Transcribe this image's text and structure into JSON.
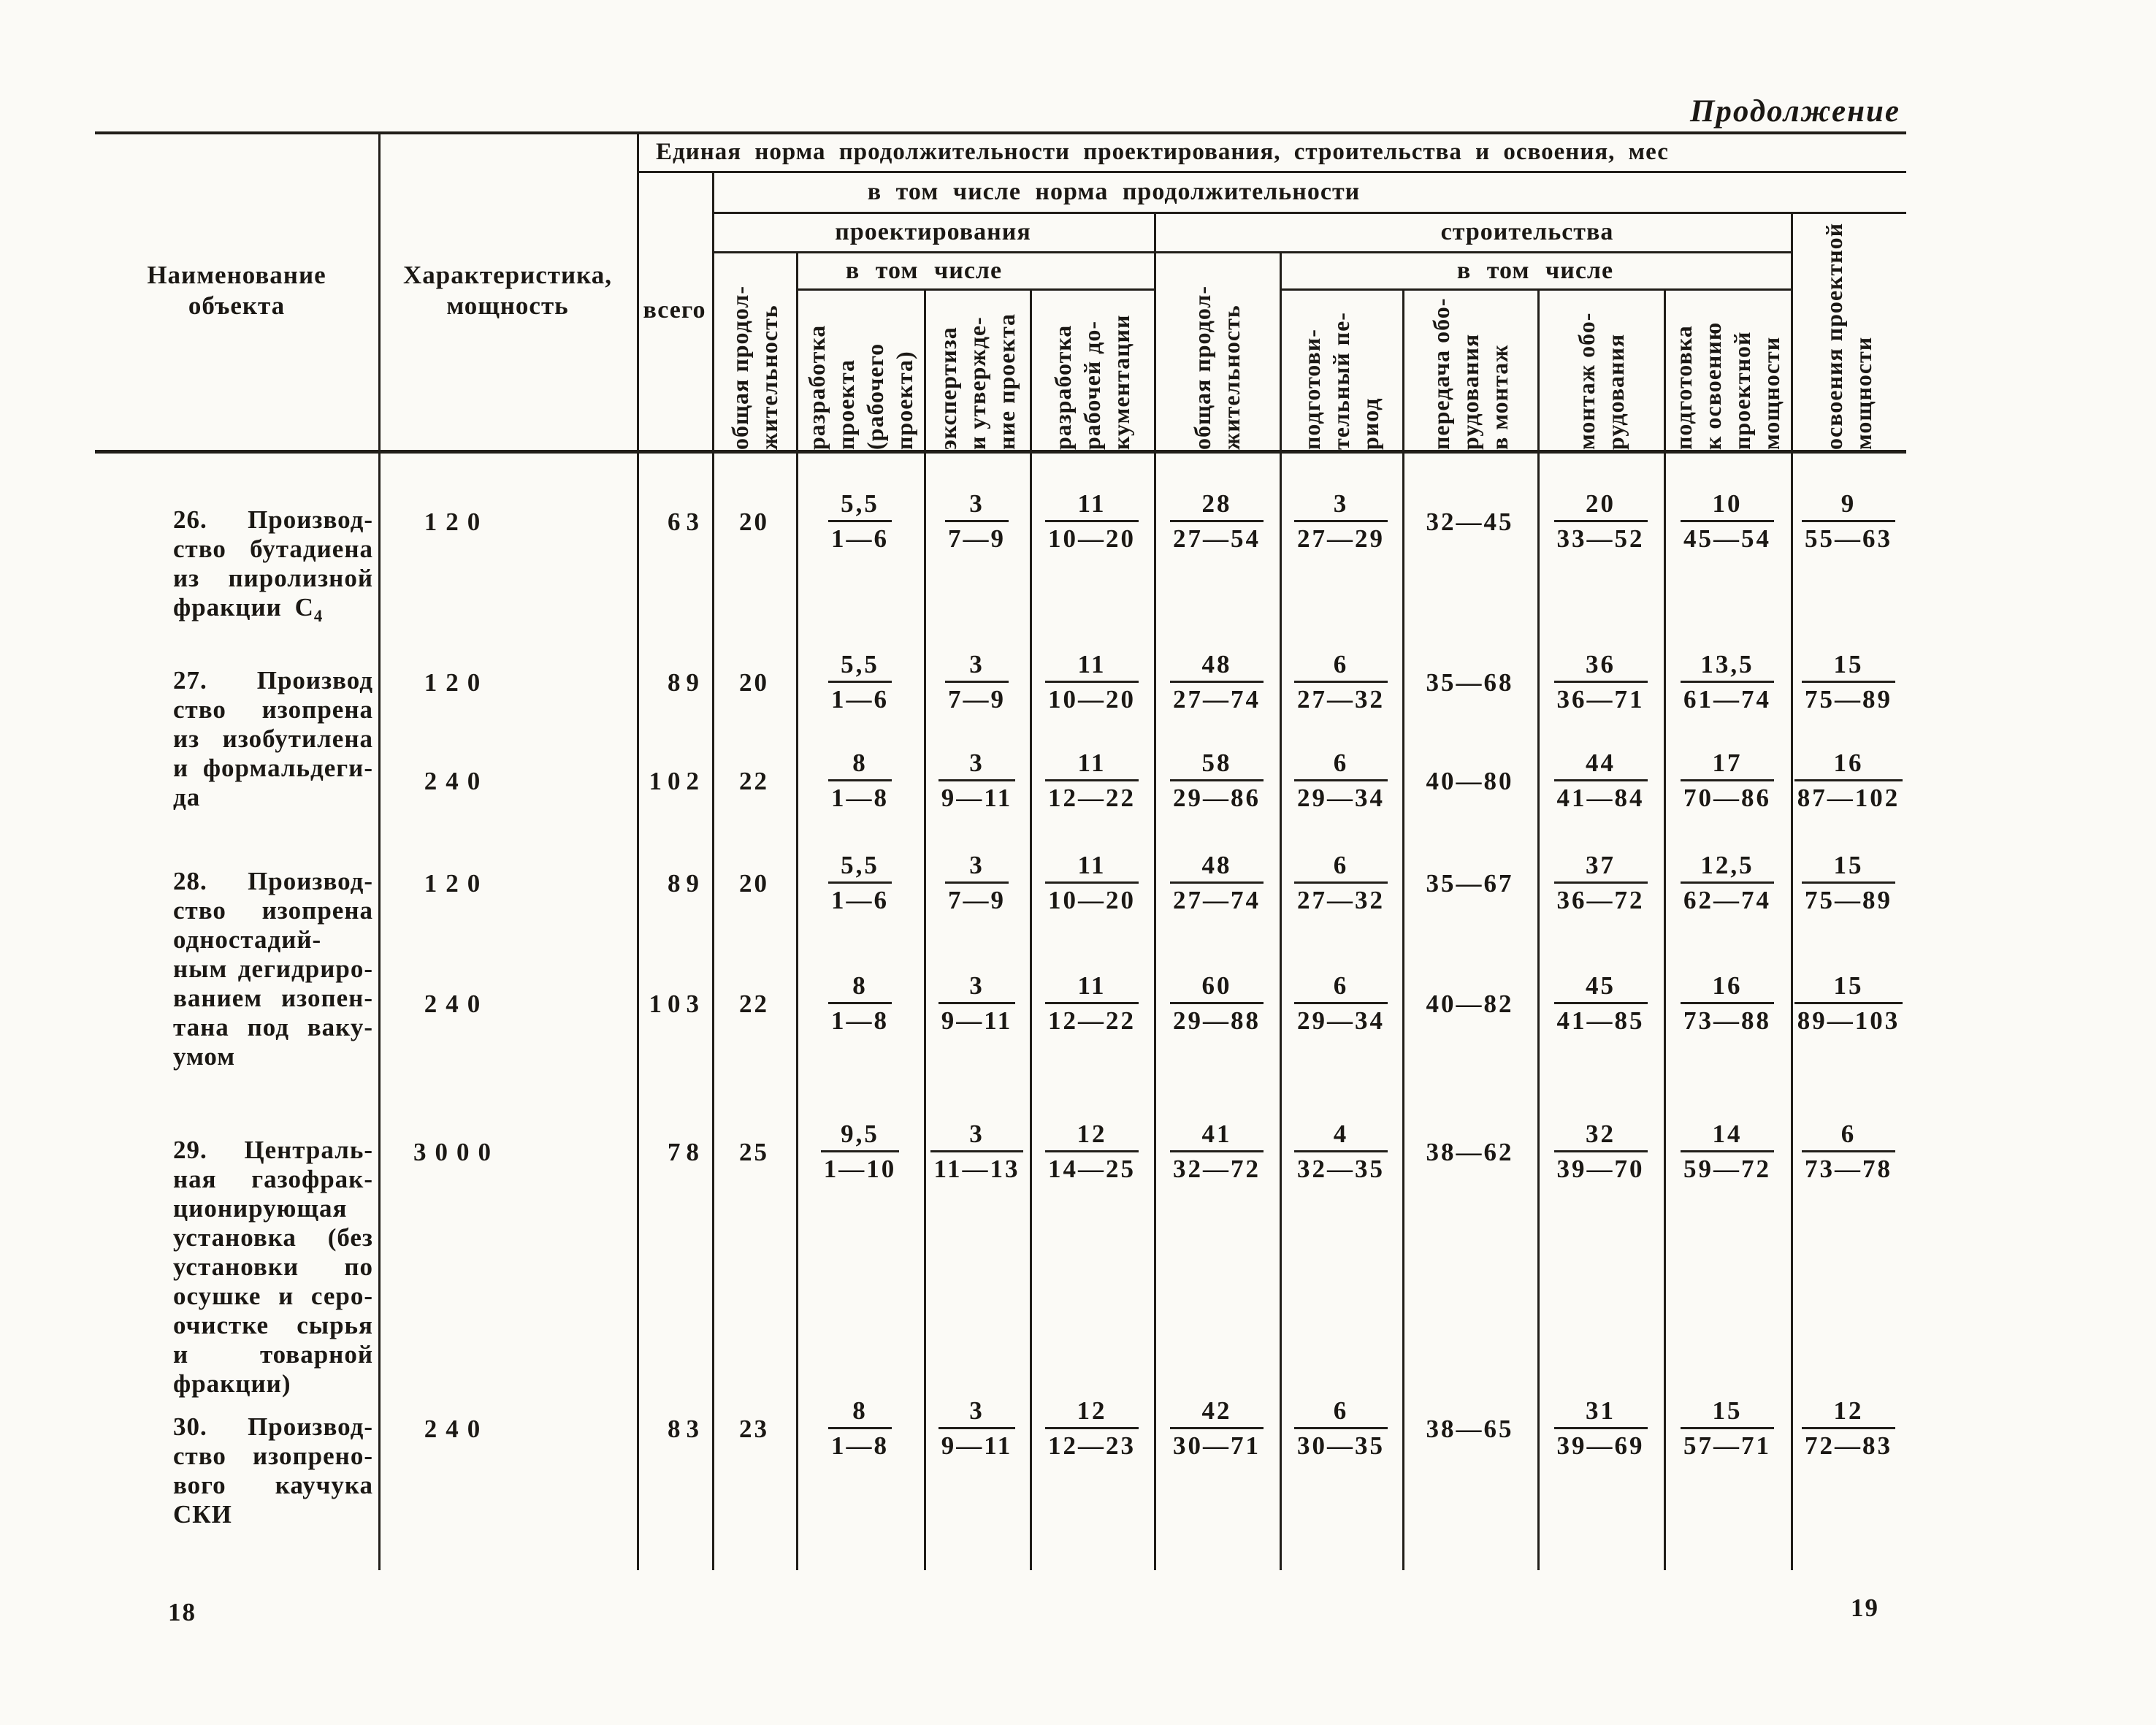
{
  "page": {
    "continuation_label": "Продолжение",
    "page_number_left": "18",
    "page_number_right": "19"
  },
  "table": {
    "header": {
      "object_name": "Наименование\nобъекта",
      "characteristic": "Характеристика,\nмощность",
      "unified_norm": "Единая норма продолжительности проектирования, строительства и освоения, мес",
      "total": "всего",
      "including_norm": "в том числе норма продолжительности",
      "design": "проектирования",
      "construction": "строительства",
      "including_design": "в том числе",
      "including_construction": "в том числе",
      "rot": {
        "design_overall": "общая продол-\nжительность",
        "project_dev": "разработка\nпроекта\n(рабочего\nпроекта)",
        "expertise": "экспертиза\nи утвержде-\nние проекта",
        "working_docs": "разработка\nрабочей до-\nкументации",
        "constr_overall": "общая продол-\nжительность",
        "prep_period": "подготови-\nтельный пе-\nриод",
        "equip_transfer": "передача обо-\nрудования\nв монтаж",
        "equip_install": "монтаж обо-\nрудования",
        "capacity_prep": "подготовка\nк освоению\nпроектной\nмощности",
        "capacity_dev": "освоения проектной\nмощности"
      }
    },
    "rows": [
      {
        "name_lines": [
          "26. Производ-",
          "ство бутадиена",
          "из пиролизной",
          "фракции С₄"
        ],
        "subrows": [
          {
            "capacity": "120",
            "total": "63",
            "design_overall": "20",
            "cells": [
              {
                "n": "5,5",
                "d": "1—6"
              },
              {
                "n": "3",
                "d": "7—9"
              },
              {
                "n": "11",
                "d": "10—20"
              },
              {
                "n": "28",
                "d": "27—54"
              },
              {
                "n": "3",
                "d": "27—29"
              },
              {
                "v": "32—45"
              },
              {
                "n": "20",
                "d": "33—52"
              },
              {
                "n": "10",
                "d": "45—54"
              },
              {
                "n": "9",
                "d": "55—63"
              }
            ]
          }
        ]
      },
      {
        "name_lines": [
          "27. Производ",
          "ство изопрена",
          "из изобутилена",
          "и формальдеги-",
          "да"
        ],
        "subrows": [
          {
            "capacity": "120",
            "total": "89",
            "design_overall": "20",
            "cells": [
              {
                "n": "5,5",
                "d": "1—6"
              },
              {
                "n": "3",
                "d": "7—9"
              },
              {
                "n": "11",
                "d": "10—20"
              },
              {
                "n": "48",
                "d": "27—74"
              },
              {
                "n": "6",
                "d": "27—32"
              },
              {
                "v": "35—68"
              },
              {
                "n": "36",
                "d": "36—71"
              },
              {
                "n": "13,5",
                "d": "61—74"
              },
              {
                "n": "15",
                "d": "75—89"
              }
            ]
          },
          {
            "capacity": "240",
            "total": "102",
            "design_overall": "22",
            "cells": [
              {
                "n": "8",
                "d": "1—8"
              },
              {
                "n": "3",
                "d": "9—11"
              },
              {
                "n": "11",
                "d": "12—22"
              },
              {
                "n": "58",
                "d": "29—86"
              },
              {
                "n": "6",
                "d": "29—34"
              },
              {
                "v": "40—80"
              },
              {
                "n": "44",
                "d": "41—84"
              },
              {
                "n": "17",
                "d": "70—86"
              },
              {
                "n": "16",
                "d": "87—102"
              }
            ]
          }
        ]
      },
      {
        "name_lines": [
          "28. Производ-",
          "ство изопрена",
          "одностадий-",
          "ным дегидриро-",
          "ванием изопен-",
          "тана под ваку-",
          "умом"
        ],
        "subrows": [
          {
            "capacity": "120",
            "total": "89",
            "design_overall": "20",
            "cells": [
              {
                "n": "5,5",
                "d": "1—6"
              },
              {
                "n": "3",
                "d": "7—9"
              },
              {
                "n": "11",
                "d": "10—20"
              },
              {
                "n": "48",
                "d": "27—74"
              },
              {
                "n": "6",
                "d": "27—32"
              },
              {
                "v": "35—67"
              },
              {
                "n": "37",
                "d": "36—72"
              },
              {
                "n": "12,5",
                "d": "62—74"
              },
              {
                "n": "15",
                "d": "75—89"
              }
            ]
          },
          {
            "capacity": "240",
            "total": "103",
            "design_overall": "22",
            "cells": [
              {
                "n": "8",
                "d": "1—8"
              },
              {
                "n": "3",
                "d": "9—11"
              },
              {
                "n": "11",
                "d": "12—22"
              },
              {
                "n": "60",
                "d": "29—88"
              },
              {
                "n": "6",
                "d": "29—34"
              },
              {
                "v": "40—82"
              },
              {
                "n": "45",
                "d": "41—85"
              },
              {
                "n": "16",
                "d": "73—88"
              },
              {
                "n": "15",
                "d": "89—103"
              }
            ]
          }
        ]
      },
      {
        "name_lines": [
          "29. Централь-",
          "ная газофрак-",
          "ционирующая",
          "установка (без",
          "установки по",
          "осушке и серо-",
          "очистке сырья",
          "и товарной",
          "фракции)"
        ],
        "subrows": [
          {
            "capacity": "3000",
            "total": "78",
            "design_overall": "25",
            "cells": [
              {
                "n": "9,5",
                "d": "1—10"
              },
              {
                "n": "3",
                "d": "11—13"
              },
              {
                "n": "12",
                "d": "14—25"
              },
              {
                "n": "41",
                "d": "32—72"
              },
              {
                "n": "4",
                "d": "32—35"
              },
              {
                "v": "38—62"
              },
              {
                "n": "32",
                "d": "39—70"
              },
              {
                "n": "14",
                "d": "59—72"
              },
              {
                "n": "6",
                "d": "73—78"
              }
            ]
          }
        ]
      },
      {
        "name_lines": [
          "30. Производ-",
          "ство изопрено-",
          "вого каучука",
          "СКИ"
        ],
        "subrows": [
          {
            "capacity": "240",
            "total": "83",
            "design_overall": "23",
            "cells": [
              {
                "n": "8",
                "d": "1—8"
              },
              {
                "n": "3",
                "d": "9—11"
              },
              {
                "n": "12",
                "d": "12—23"
              },
              {
                "n": "42",
                "d": "30—71"
              },
              {
                "n": "6",
                "d": "30—35"
              },
              {
                "v": "38—65"
              },
              {
                "n": "31",
                "d": "39—69"
              },
              {
                "n": "15",
                "d": "57—71"
              },
              {
                "n": "12",
                "d": "72—83"
              }
            ]
          }
        ]
      }
    ]
  }
}
